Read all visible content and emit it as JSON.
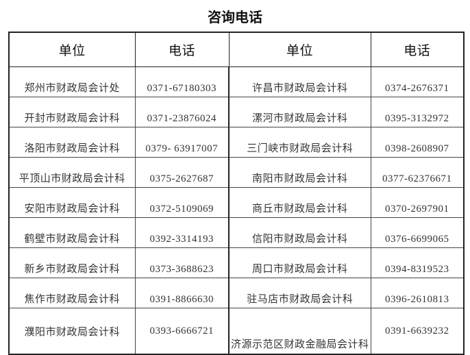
{
  "title": "咨询电话",
  "headers": [
    "单位",
    "电话",
    "单位",
    "电话"
  ],
  "rows": [
    {
      "unit_left": "郑州市财政局会计处",
      "phone_left": "0371-67180303",
      "unit_right": "许昌市财政局会计科",
      "phone_right": "0374-2676371"
    },
    {
      "unit_left": "开封市财政局会计科",
      "phone_left": "0371-23876024",
      "unit_right": "漯河市财政局会计科",
      "phone_right": "0395-3132972"
    },
    {
      "unit_left": "洛阳市财政局会计科",
      "phone_left": "0379- 63917007",
      "unit_right": "三门峡市财政局会计科",
      "phone_right": "0398-2608907"
    },
    {
      "unit_left": "平顶山市财政局会计科",
      "phone_left": "0375-2627687",
      "unit_right": "南阳市财政局会计科",
      "phone_right": "0377-62376671"
    },
    {
      "unit_left": "安阳市财政局会计科",
      "phone_left": "0372-5109069",
      "unit_right": "商丘市财政局会计科",
      "phone_right": "0370-2697901"
    },
    {
      "unit_left": "鹤壁市财政局会计科",
      "phone_left": "0392-3314193",
      "unit_right": "信阳市财政局会计科",
      "phone_right": "0376-6699065"
    },
    {
      "unit_left": "新乡市财政局会计科",
      "phone_left": "0373-3688623",
      "unit_right": "周口市财政局会计科",
      "phone_right": "0394-8319523"
    },
    {
      "unit_left": "焦作市财政局会计科",
      "phone_left": "0391-8866630",
      "unit_right": "驻马店市财政局会计科",
      "phone_right": "0396-2610813"
    },
    {
      "unit_left": "濮阳市财政局会计科",
      "phone_left": "0393-6666721",
      "unit_right": "济源示范区财政金融局会计科",
      "phone_right": "0391-6639232"
    }
  ]
}
